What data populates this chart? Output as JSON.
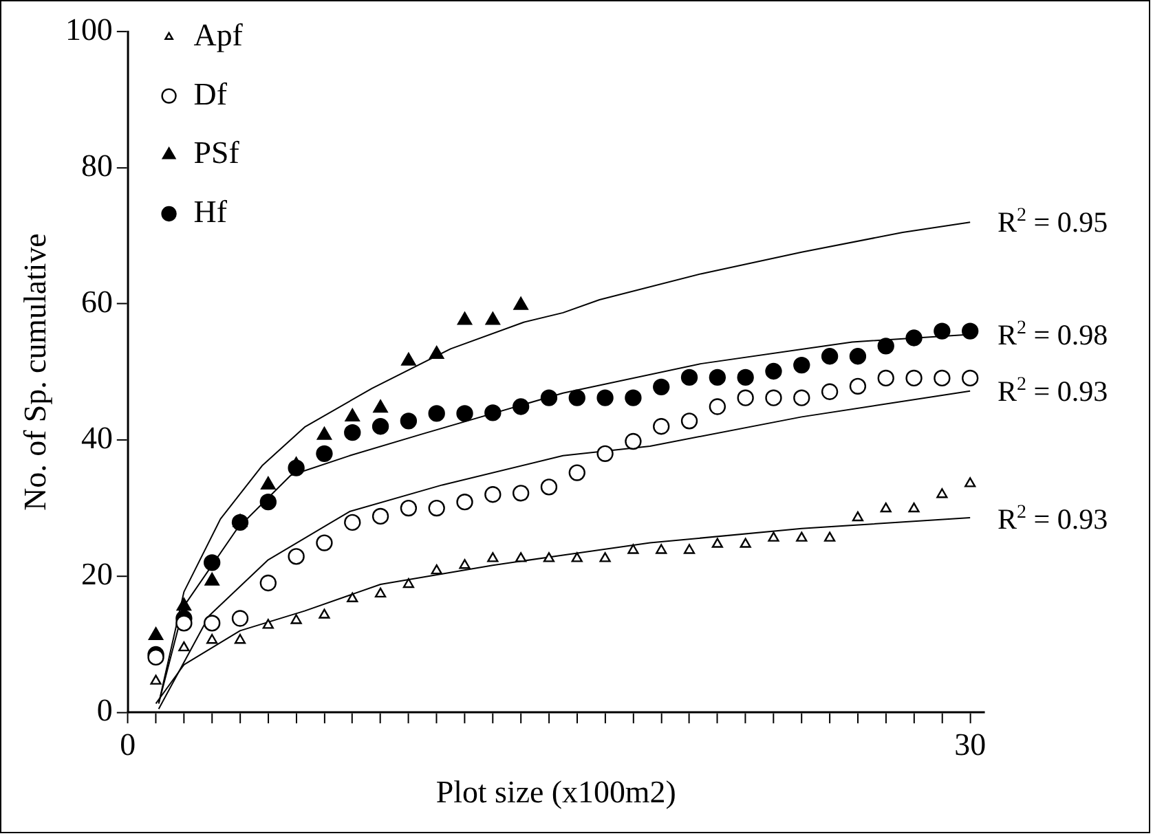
{
  "chart_data": {
    "type": "scatter",
    "xlabel": "Plot size (x100m2)",
    "ylabel": "No. of Sp. cumulative",
    "xlim": [
      0,
      30.5
    ],
    "xticks": [
      0,
      {
        "value": 1,
        "label": null
      },
      {
        "value": 2,
        "label": null
      },
      {
        "value": 3,
        "label": null
      },
      {
        "value": 4,
        "label": null
      },
      {
        "value": 5,
        "label": null
      },
      {
        "value": 6,
        "label": null
      },
      {
        "value": 7,
        "label": null
      },
      {
        "value": 8,
        "label": null
      },
      {
        "value": 9,
        "label": null
      },
      {
        "value": 10,
        "label": null
      },
      {
        "value": 11,
        "label": null
      },
      {
        "value": 12,
        "label": null
      },
      {
        "value": 13,
        "label": null
      },
      {
        "value": 14,
        "label": null
      },
      {
        "value": 15,
        "label": null
      },
      {
        "value": 16,
        "label": null
      },
      {
        "value": 17,
        "label": null
      },
      {
        "value": 18,
        "label": null
      },
      {
        "value": 19,
        "label": null
      },
      {
        "value": 20,
        "label": null
      },
      {
        "value": 21,
        "label": null
      },
      {
        "value": 22,
        "label": null
      },
      {
        "value": 23,
        "label": null
      },
      {
        "value": 24,
        "label": null
      },
      {
        "value": 25,
        "label": null
      },
      {
        "value": 26,
        "label": null
      },
      {
        "value": 27,
        "label": null
      },
      {
        "value": 28,
        "label": null
      },
      {
        "value": 29,
        "label": null
      },
      30
    ],
    "ylim": [
      0,
      100
    ],
    "yticks": [
      0,
      20,
      40,
      60,
      80,
      100
    ],
    "legend": "top left",
    "x": [
      1,
      2,
      3,
      4,
      5,
      6,
      7,
      8,
      9,
      10,
      11,
      12,
      13,
      14,
      15,
      16,
      17,
      18,
      19,
      20,
      21,
      22,
      23,
      24,
      25,
      26,
      27,
      28,
      29,
      30
    ],
    "series": [
      {
        "name": "Apf",
        "color": "#ffffff",
        "marker": "triangle",
        "values": [
          4.6,
          9.5,
          10.6,
          10.6,
          12.8,
          13.5,
          14.3,
          16.7,
          17.4,
          18.8,
          20.8,
          21.6,
          22.6,
          22.6,
          22.6,
          22.6,
          22.6,
          23.8,
          23.8,
          23.8,
          24.7,
          24.7,
          25.6,
          25.6,
          25.6,
          28.6,
          29.9,
          29.9,
          32,
          33.6
        ]
      },
      {
        "name": "Df",
        "color": "#ffffff",
        "marker": "circle",
        "values": [
          8.1,
          13.1,
          13.1,
          13.8,
          19,
          22.9,
          24.9,
          27.9,
          28.8,
          30,
          30,
          30.9,
          32,
          32.2,
          33.1,
          35.2,
          38,
          39.8,
          42,
          42.8,
          44.9,
          46.2,
          46.2,
          46.2,
          47.1,
          47.9,
          49.1,
          49.1,
          49.1,
          49.1
        ]
      },
      {
        "name": "PSf",
        "color": "#000000",
        "marker": "triangle",
        "values": [
          11.3,
          15.6,
          19.3,
          27.9,
          33.4,
          36.3,
          40.7,
          43.4,
          44.7,
          51.6,
          52.6,
          57.6,
          57.6,
          59.8,
          null,
          null,
          null,
          null,
          null,
          null,
          null,
          null,
          null,
          null,
          null,
          null,
          null,
          null,
          null,
          null
        ]
      },
      {
        "name": "Hf",
        "color": "#000000",
        "marker": "circle",
        "values": [
          8.5,
          13.8,
          22,
          27.9,
          30.9,
          35.9,
          38,
          41.1,
          42,
          42.8,
          43.9,
          43.9,
          44,
          44.9,
          46.2,
          46.2,
          46.2,
          46.2,
          47.8,
          49.2,
          49.2,
          49.2,
          50.1,
          51,
          52.3,
          52.3,
          53.8,
          55,
          56,
          56
        ]
      },
      {
        "type": "line",
        "color": "#000000",
        "marker": "none",
        "x": [
          1.1,
          2,
          3.3,
          4.8,
          6.3,
          8.7,
          11.5,
          14.1,
          15.5,
          16.8,
          20.4,
          24,
          27.6,
          30
        ],
        "values": [
          1.3,
          17.7,
          28.4,
          36.3,
          41.9,
          47.6,
          53.4,
          57.3,
          58.7,
          60.6,
          64.4,
          67.6,
          70.5,
          72
        ]
      },
      {
        "type": "line",
        "color": "#000000",
        "marker": "none",
        "x": [
          1.1,
          2,
          3.9,
          5.8,
          7.9,
          10.5,
          15.5,
          20.4,
          25.8,
          30
        ],
        "values": [
          1.3,
          15.6,
          27,
          34.8,
          37.7,
          40.9,
          46.9,
          51.2,
          54.4,
          55.5
        ]
      },
      {
        "type": "line",
        "color": "#000000",
        "marker": "none",
        "x": [
          1.1,
          2.9,
          5,
          7.9,
          11.2,
          15.5,
          18.6,
          24,
          30
        ],
        "values": [
          0.5,
          14.2,
          22.4,
          29.5,
          33.4,
          37.7,
          39.1,
          43.4,
          47.2
        ]
      },
      {
        "type": "line",
        "color": "#000000",
        "marker": "none",
        "x": [
          1,
          2,
          4,
          6.3,
          9,
          13,
          15.5,
          18.6,
          24,
          30
        ],
        "values": [
          1.3,
          7,
          12,
          14.9,
          18.8,
          21.6,
          23.1,
          24.9,
          27,
          28.6
        ]
      }
    ],
    "annotations": [
      "R$^{2}$ = 0.95",
      "R$^{2}$ = 0.98",
      "R$^{2}$ = 0.93",
      "R$^{2}$ = 0.93"
    ]
  }
}
